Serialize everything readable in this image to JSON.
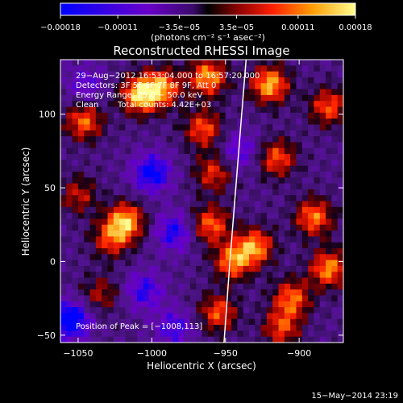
{
  "chart_data": {
    "type": "heatmap",
    "title": "Reconstructed RHESSI Image",
    "xlabel": "Heliocentric X (arcsec)",
    "ylabel": "Heliocentric Y (arcsec)",
    "xlim": [
      -1062,
      -870
    ],
    "ylim": [
      -55,
      137
    ],
    "x_ticks": [
      {
        "value": -1050,
        "label": "−1050"
      },
      {
        "value": -1000,
        "label": "−1000"
      },
      {
        "value": -950,
        "label": "−950"
      },
      {
        "value": -900,
        "label": "−900"
      }
    ],
    "y_ticks": [
      {
        "value": -50,
        "label": "−50"
      },
      {
        "value": 0,
        "label": "0"
      },
      {
        "value": 50,
        "label": "50"
      },
      {
        "value": 100,
        "label": "100"
      }
    ],
    "colorbar": {
      "range": [
        -0.00018,
        0.00018
      ],
      "ticks": [
        {
          "value": -0.00018,
          "label": "−0.00018"
        },
        {
          "value": -0.00011,
          "label": "−0.00011"
        },
        {
          "value": -3.5e-05,
          "label": "−3.5e−05"
        },
        {
          "value": 3.5e-05,
          "label": "3.5e−05"
        },
        {
          "value": 0.00011,
          "label": "0.00011"
        },
        {
          "value": 0.00018,
          "label": "0.00018"
        }
      ],
      "unit_label": "(photons cm⁻² s⁻¹ asec⁻²)"
    },
    "annotations": {
      "time_range": "29−Aug−2012 16:53:04.000 to 16:57:20.000",
      "detectors": "Detectors: 3F 5F 6F 7F 8F 9F, Att 0",
      "energy": "Energy Range: 25.0 − 50.0 keV",
      "clean": "Clean",
      "total_counts": "Total counts: 4.42E+03",
      "peak": "Position of Peak = [−1008,113]"
    },
    "limb_x": [
      -951,
      -947,
      -943,
      -939,
      -936
    ],
    "limb_y": [
      -55,
      0,
      50,
      100,
      137
    ],
    "hot_spots": [
      {
        "x": -1008,
        "y": 113,
        "v": 1.0
      },
      {
        "x": -1018,
        "y": 27,
        "v": 0.95
      },
      {
        "x": -1028,
        "y": 15,
        "v": 0.6
      },
      {
        "x": -1046,
        "y": 95,
        "v": 0.75
      },
      {
        "x": -1050,
        "y": 45,
        "v": 0.5
      },
      {
        "x": -993,
        "y": 118,
        "v": 0.85
      },
      {
        "x": -1035,
        "y": -22,
        "v": 0.45
      },
      {
        "x": -962,
        "y": 125,
        "v": 0.9
      },
      {
        "x": -965,
        "y": 90,
        "v": 0.7
      },
      {
        "x": -958,
        "y": 60,
        "v": 0.6
      },
      {
        "x": -960,
        "y": 25,
        "v": 0.75
      },
      {
        "x": -945,
        "y": 0,
        "v": 0.8
      },
      {
        "x": -955,
        "y": -35,
        "v": 0.7
      },
      {
        "x": -920,
        "y": 120,
        "v": 0.95
      },
      {
        "x": -915,
        "y": 70,
        "v": 0.7
      },
      {
        "x": -930,
        "y": 10,
        "v": 0.85
      },
      {
        "x": -905,
        "y": -25,
        "v": 0.75
      },
      {
        "x": -890,
        "y": 30,
        "v": 0.8
      },
      {
        "x": -880,
        "y": 105,
        "v": 0.7
      },
      {
        "x": -912,
        "y": -45,
        "v": 0.65
      },
      {
        "x": -880,
        "y": -5,
        "v": 0.85
      }
    ],
    "cold_spots": [
      {
        "x": -1055,
        "y": -40,
        "v": -0.9
      },
      {
        "x": -1000,
        "y": 60,
        "v": -0.75
      },
      {
        "x": -985,
        "y": 20,
        "v": -0.6
      },
      {
        "x": -1005,
        "y": -20,
        "v": -0.55
      },
      {
        "x": -1045,
        "y": 120,
        "v": -0.4
      },
      {
        "x": -985,
        "y": -45,
        "v": -0.5
      },
      {
        "x": -940,
        "y": 75,
        "v": -0.45
      }
    ]
  },
  "footer": {
    "date": "15−May−2014 23:19"
  }
}
